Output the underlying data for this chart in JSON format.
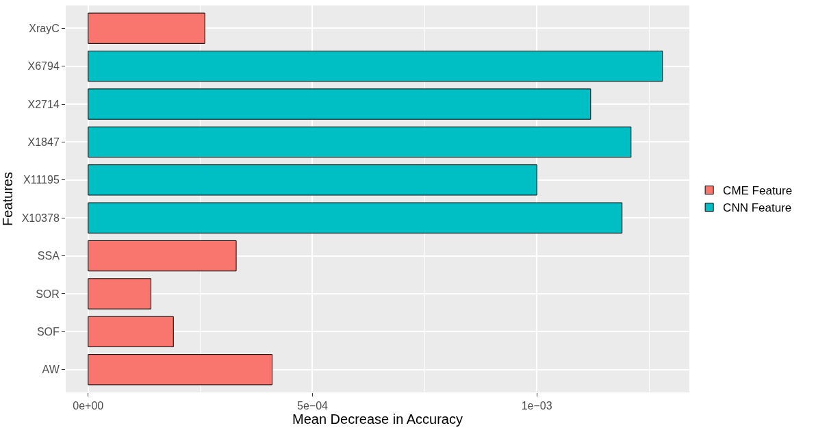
{
  "chart_data": {
    "type": "bar",
    "orientation": "horizontal",
    "xlabel": "Mean Decrease in Accuracy",
    "ylabel": "Features",
    "categories": [
      "XrayC",
      "X6794",
      "X2714",
      "X1847",
      "X11195",
      "X10378",
      "SSA",
      "SOR",
      "SOF",
      "AW"
    ],
    "series": [
      {
        "name": "CME Feature",
        "color": "#f8766d",
        "values": [
          0.00026,
          null,
          null,
          null,
          null,
          null,
          0.00033,
          0.00014,
          0.00019,
          0.00041
        ]
      },
      {
        "name": "CNN Feature",
        "color": "#00bfc4",
        "values": [
          null,
          0.00128,
          0.00112,
          0.00121,
          0.001,
          0.00119,
          null,
          null,
          null,
          null
        ]
      }
    ],
    "xlim": [
      -5e-05,
      0.00134
    ],
    "xticks": [
      {
        "value": 0,
        "label": "0e+00"
      },
      {
        "value": 0.00025,
        "label": null
      },
      {
        "value": 0.0005,
        "label": "5e−04"
      },
      {
        "value": 0.00075,
        "label": null
      },
      {
        "value": 0.001,
        "label": "1e−03"
      },
      {
        "value": 0.00125,
        "label": null
      }
    ],
    "grid": true,
    "legend": "right"
  }
}
